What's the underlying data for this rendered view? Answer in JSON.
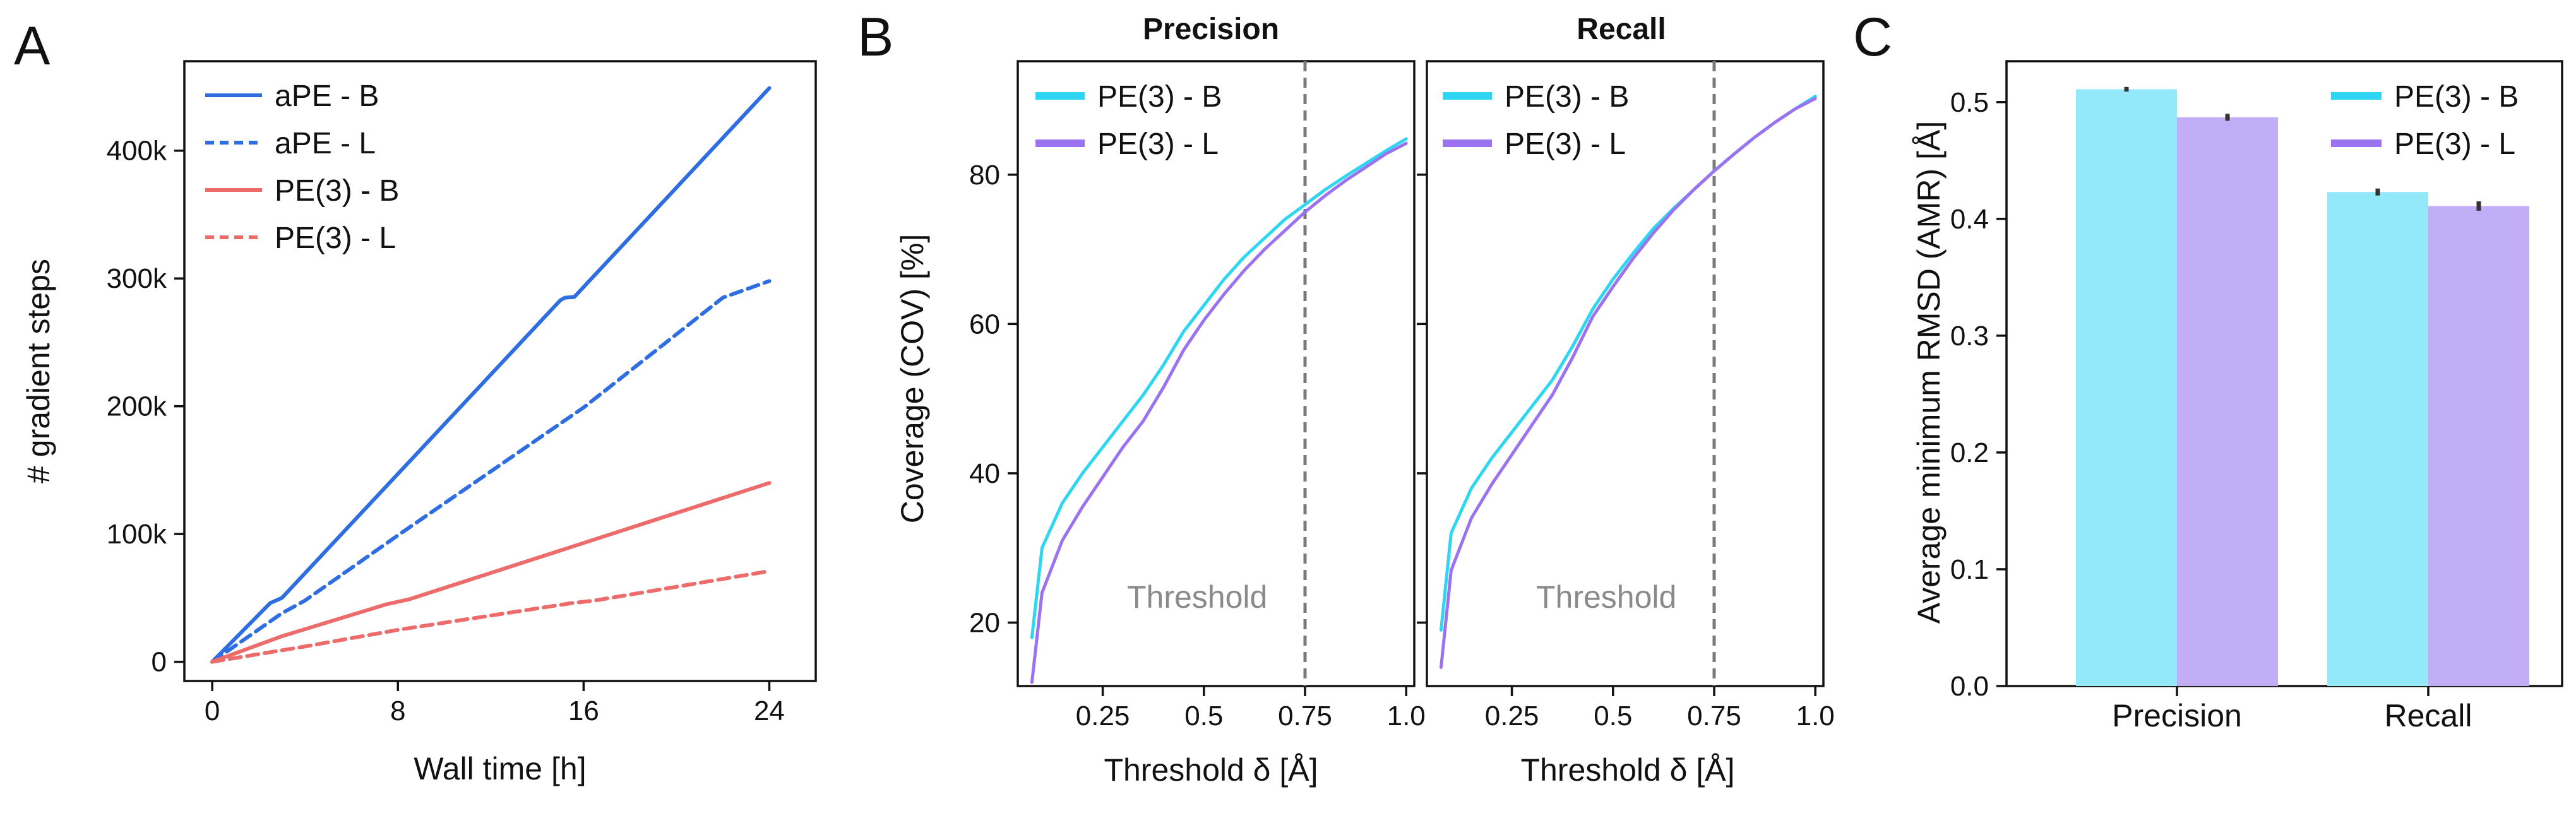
{
  "panel_labels": [
    "A",
    "B",
    "C"
  ],
  "colors": {
    "ape": "#2f6ee0",
    "pe3": "#ec6b6b",
    "cyan": "#2fd6f2",
    "purple": "#9b72ef",
    "cyan_bar": "#93e8f9",
    "purple_bar": "#c2aef7",
    "threshold": "#7a7a7a"
  },
  "chart_data": [
    {
      "id": "A",
      "type": "line",
      "xlabel": "Wall time [h]",
      "ylabel": "# gradient steps",
      "xlim": [
        -1.2,
        26
      ],
      "ylim": [
        -15000,
        470000
      ],
      "xticks": [
        0,
        8,
        16,
        24
      ],
      "xtick_labels": [
        "0",
        "8",
        "16",
        "24"
      ],
      "yticks": [
        0,
        100000,
        200000,
        300000,
        400000
      ],
      "ytick_labels": [
        "0",
        "100k",
        "200k",
        "300k",
        "400k"
      ],
      "series": [
        {
          "name": "aPE - B",
          "color": "ape",
          "dash": false,
          "x": [
            0,
            2.5,
            3,
            15,
            15.2,
            15.6,
            24
          ],
          "y": [
            0,
            46000,
            50000,
            283000,
            285000,
            285500,
            449000
          ]
        },
        {
          "name": "aPE - L",
          "color": "ape",
          "dash": true,
          "x": [
            0,
            3,
            4,
            8,
            16,
            22,
            24
          ],
          "y": [
            0,
            38000,
            48000,
            99000,
            199000,
            285000,
            298000
          ]
        },
        {
          "name": "PE(3) - B",
          "color": "pe3",
          "dash": false,
          "x": [
            0,
            3,
            7.5,
            8.5,
            16,
            24
          ],
          "y": [
            0,
            20000,
            45000,
            49000,
            93000,
            140000
          ]
        },
        {
          "name": "PE(3) - L",
          "color": "pe3",
          "dash": true,
          "x": [
            0,
            4,
            8,
            15.5,
            16.5,
            24
          ],
          "y": [
            0,
            12000,
            25000,
            46000,
            48000,
            71000
          ]
        }
      ]
    },
    {
      "id": "B1",
      "type": "line",
      "title": "Precision",
      "xlabel": "Threshold δ [Å]",
      "ylabel": "Coverage (COV) [%]",
      "xlim": [
        0.04,
        1.02
      ],
      "ylim": [
        11.5,
        95.2
      ],
      "xticks": [
        0.25,
        0.5,
        0.75,
        1.0
      ],
      "xtick_labels": [
        "0.25",
        "0.5",
        "0.75",
        "1.0"
      ],
      "yticks": [
        20,
        40,
        60,
        80
      ],
      "ytick_labels": [
        "20",
        "40",
        "60",
        "80"
      ],
      "threshold": 0.75,
      "annotation": "Threshold",
      "series": [
        {
          "name": "PE(3) - B",
          "color": "cyan",
          "x": [
            0.075,
            0.1,
            0.15,
            0.2,
            0.25,
            0.3,
            0.35,
            0.4,
            0.45,
            0.5,
            0.55,
            0.6,
            0.65,
            0.7,
            0.75,
            0.8,
            0.85,
            0.9,
            0.95,
            1.0
          ],
          "y": [
            18,
            30,
            36,
            40,
            43.5,
            47,
            50.5,
            54.5,
            59,
            62.5,
            66,
            69,
            71.5,
            74,
            76,
            78,
            79.8,
            81.5,
            83.2,
            84.8
          ]
        },
        {
          "name": "PE(3) - L",
          "color": "purple",
          "x": [
            0.075,
            0.1,
            0.15,
            0.2,
            0.25,
            0.3,
            0.35,
            0.4,
            0.45,
            0.5,
            0.55,
            0.6,
            0.65,
            0.7,
            0.75,
            0.8,
            0.85,
            0.9,
            0.95,
            1.0
          ],
          "y": [
            12,
            24,
            31,
            35.5,
            39.5,
            43.5,
            47,
            51.5,
            56.5,
            60.5,
            64,
            67.2,
            70,
            72.5,
            75,
            77.2,
            79.2,
            81,
            82.8,
            84.2
          ]
        }
      ]
    },
    {
      "id": "B2",
      "type": "line",
      "title": "Recall",
      "xlabel": "Threshold δ [Å]",
      "xlim": [
        0.04,
        1.02
      ],
      "ylim": [
        11.5,
        95.2
      ],
      "xticks": [
        0.25,
        0.5,
        0.75,
        1.0
      ],
      "xtick_labels": [
        "0.25",
        "0.5",
        "0.75",
        "1.0"
      ],
      "yticks": [
        20,
        40,
        60,
        80
      ],
      "threshold": 0.75,
      "annotation": "Threshold",
      "series": [
        {
          "name": "PE(3) - B",
          "color": "cyan",
          "x": [
            0.075,
            0.1,
            0.15,
            0.2,
            0.25,
            0.3,
            0.35,
            0.4,
            0.45,
            0.5,
            0.55,
            0.6,
            0.65,
            0.7,
            0.75,
            0.8,
            0.85,
            0.9,
            0.95,
            1.0
          ],
          "y": [
            19,
            32,
            38,
            42,
            45.5,
            49,
            52.5,
            57,
            62,
            66,
            69.5,
            72.8,
            75.5,
            78,
            80.5,
            82.8,
            85,
            87,
            88.8,
            90.5
          ]
        },
        {
          "name": "PE(3) - L",
          "color": "purple",
          "x": [
            0.075,
            0.1,
            0.15,
            0.2,
            0.25,
            0.3,
            0.35,
            0.4,
            0.45,
            0.5,
            0.55,
            0.6,
            0.65,
            0.7,
            0.75,
            0.8,
            0.85,
            0.9,
            0.95,
            1.0
          ],
          "y": [
            14,
            27,
            34,
            38.5,
            42.5,
            46.5,
            50.5,
            55.5,
            61,
            65,
            68.8,
            72.2,
            75.3,
            78,
            80.5,
            82.8,
            85,
            87,
            88.8,
            90.2
          ]
        }
      ]
    },
    {
      "id": "C",
      "type": "bar",
      "ylabel": "Average minimum RMSD (AMR) [Å]",
      "categories": [
        "Precision",
        "Recall"
      ],
      "ylim": [
        0,
        0.535
      ],
      "yticks": [
        0.0,
        0.1,
        0.2,
        0.3,
        0.4,
        0.5
      ],
      "ytick_labels": [
        "0.0",
        "0.1",
        "0.2",
        "0.3",
        "0.4",
        "0.5"
      ],
      "series": [
        {
          "name": "PE(3) - B",
          "color": "cyan",
          "bar_color": "cyan_bar",
          "values": [
            0.511,
            0.423
          ],
          "err": [
            0.002,
            0.003
          ]
        },
        {
          "name": "PE(3) - L",
          "color": "purple",
          "bar_color": "purple_bar",
          "values": [
            0.487,
            0.411
          ],
          "err": [
            0.003,
            0.004
          ]
        }
      ]
    }
  ]
}
